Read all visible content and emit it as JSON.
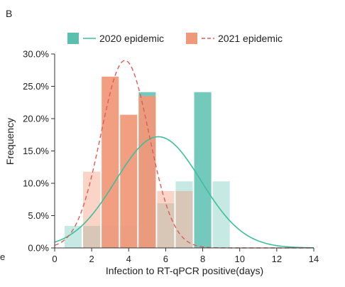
{
  "panel_label": "B",
  "edge_fragment": "e",
  "chart_data": {
    "type": "bar",
    "title": "",
    "xlabel": "Infection to RT-qPCR positive(days)",
    "ylabel": "Frequency",
    "xlim": [
      0,
      14
    ],
    "ylim": [
      0,
      30
    ],
    "x_ticks": [
      0,
      2,
      4,
      6,
      8,
      10,
      12,
      14
    ],
    "y_ticks": [
      0,
      5,
      10,
      15,
      20,
      25,
      30
    ],
    "y_tick_labels": [
      "0.0%",
      "5.0%",
      "10.0%",
      "15.0%",
      "20.0%",
      "25.0%",
      "30.0%"
    ],
    "grid": false,
    "legend_position": "top",
    "bin_width": 1,
    "series": [
      {
        "name": "2020 epidemic",
        "color": "#5bbfb0",
        "curve_color": "#3dbf9d",
        "curve_style": "solid",
        "bins": [
          {
            "x": 1,
            "value": 3.4
          },
          {
            "x": 2,
            "value": 3.4
          },
          {
            "x": 3,
            "value": 3.4
          },
          {
            "x": 4,
            "value": 3.4
          },
          {
            "x": 5,
            "value": 24.1
          },
          {
            "x": 6,
            "value": 6.9
          },
          {
            "x": 7,
            "value": 10.3
          },
          {
            "x": 8,
            "value": 24.1
          },
          {
            "x": 9,
            "value": 10.3
          }
        ],
        "curve": {
          "mean": 5.6,
          "sd": 2.3,
          "peak": 17.2
        }
      },
      {
        "name": "2021 epidemic",
        "color": "#f0997a",
        "curve_color": "#e05a5a",
        "curve_style": "dashed",
        "bins": [
          {
            "x": 2,
            "value": 11.8
          },
          {
            "x": 3,
            "value": 26.5
          },
          {
            "x": 4,
            "value": 20.6
          },
          {
            "x": 5,
            "value": 23.5
          },
          {
            "x": 6,
            "value": 8.8
          },
          {
            "x": 7,
            "value": 8.8
          }
        ],
        "curve": {
          "mean": 3.8,
          "sd": 1.3,
          "peak": 29.0
        }
      }
    ]
  }
}
